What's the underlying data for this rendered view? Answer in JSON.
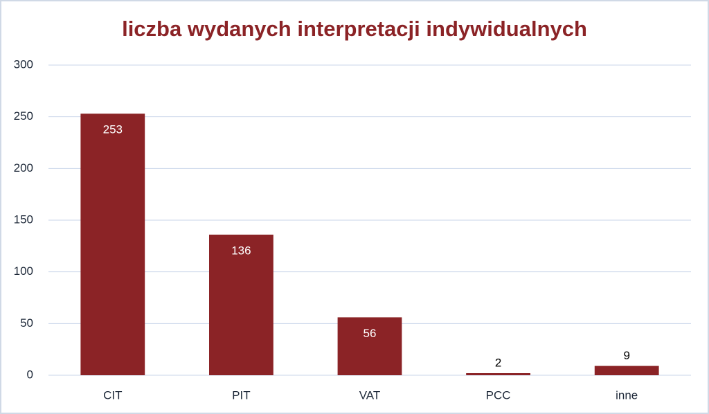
{
  "chart_data": {
    "type": "bar",
    "title": "liczba wydanych interpretacji indywidualnych",
    "categories": [
      "CIT",
      "PIT",
      "VAT",
      "PCC",
      "inne"
    ],
    "values": [
      253,
      136,
      56,
      2,
      9
    ],
    "color": "#8b2326",
    "ylim": [
      0,
      300
    ],
    "yticks": [
      0,
      50,
      100,
      150,
      200,
      250,
      300
    ],
    "grid": true
  }
}
